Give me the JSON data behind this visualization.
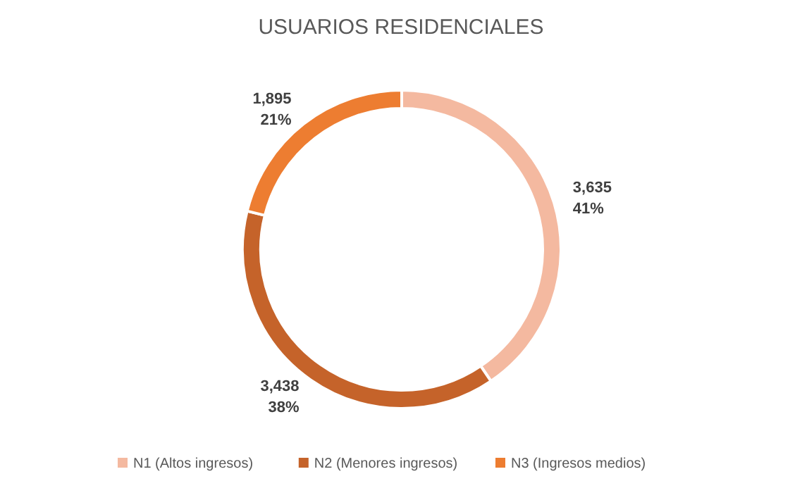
{
  "chart_data": {
    "type": "donut",
    "title": "USUARIOS RESIDENCIALES",
    "categories": [
      "N1 (Altos ingresos)",
      "N2 (Menores ingresos)",
      "N3 (Ingresos medios)"
    ],
    "values": [
      3635,
      3438,
      1895
    ],
    "colors": [
      "#f4b9a0",
      "#c5632a",
      "#ed7d31"
    ],
    "value_labels": [
      "3,635\n41%",
      "3,438\n38%",
      "1,895\n21%"
    ],
    "legend": "bottom"
  }
}
